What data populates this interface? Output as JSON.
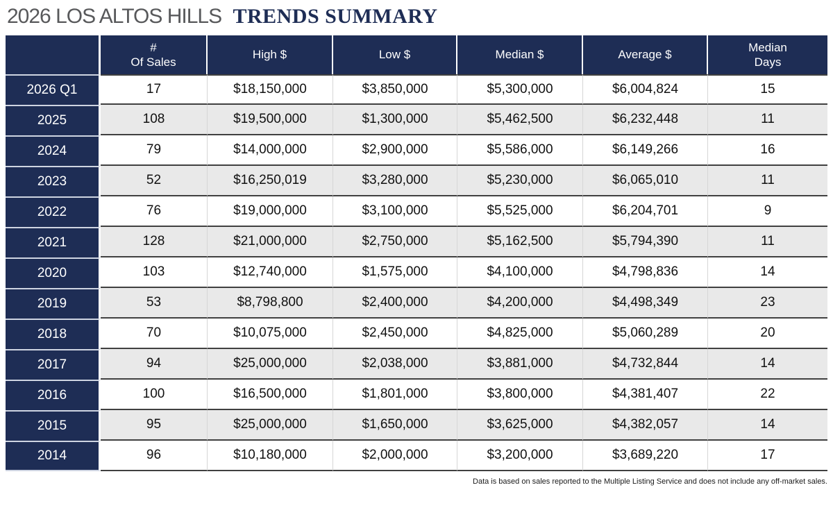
{
  "title": {
    "prefix": "2026 LOS ALTOS HILLS",
    "emphasis": "TRENDS SUMMARY"
  },
  "chart_data": {
    "type": "table",
    "title": "2026 LOS ALTOS HILLS TRENDS SUMMARY",
    "columns": [
      "",
      "#\nOf Sales",
      "High $",
      "Low $",
      "Median $",
      "Average $",
      "Median\nDays"
    ],
    "rows": [
      [
        "2026 Q1",
        "17",
        "$18,150,000",
        "$3,850,000",
        "$5,300,000",
        "$6,004,824",
        "15"
      ],
      [
        "2025",
        "108",
        "$19,500,000",
        "$1,300,000",
        "$5,462,500",
        "$6,232,448",
        "11"
      ],
      [
        "2024",
        "79",
        "$14,000,000",
        "$2,900,000",
        "$5,586,000",
        "$6,149,266",
        "16"
      ],
      [
        "2023",
        "52",
        "$16,250,019",
        "$3,280,000",
        "$5,230,000",
        "$6,065,010",
        "11"
      ],
      [
        "2022",
        "76",
        "$19,000,000",
        "$3,100,000",
        "$5,525,000",
        "$6,204,701",
        "9"
      ],
      [
        "2021",
        "128",
        "$21,000,000",
        "$2,750,000",
        "$5,162,500",
        "$5,794,390",
        "11"
      ],
      [
        "2020",
        "103",
        "$12,740,000",
        "$1,575,000",
        "$4,100,000",
        "$4,798,836",
        "14"
      ],
      [
        "2019",
        "53",
        "$8,798,800",
        "$2,400,000",
        "$4,200,000",
        "$4,498,349",
        "23"
      ],
      [
        "2018",
        "70",
        "$10,075,000",
        "$2,450,000",
        "$4,825,000",
        "$5,060,289",
        "20"
      ],
      [
        "2017",
        "94",
        "$25,000,000",
        "$2,038,000",
        "$3,881,000",
        "$4,732,844",
        "14"
      ],
      [
        "2016",
        "100",
        "$16,500,000",
        "$1,801,000",
        "$3,800,000",
        "$4,381,407",
        "22"
      ],
      [
        "2015",
        "95",
        "$25,000,000",
        "$1,650,000",
        "$3,625,000",
        "$4,382,057",
        "14"
      ],
      [
        "2014",
        "96",
        "$10,180,000",
        "$2,000,000",
        "$3,200,000",
        "$3,689,220",
        "17"
      ]
    ]
  },
  "footnote": "Data is based on sales reported to the Multiple Listing Service and does not include any off-market sales.",
  "colors": {
    "navy": "#1e2d55",
    "stripe_row": "#e9e9e9",
    "title_gray": "#58595b",
    "row_divider": "#404040"
  }
}
